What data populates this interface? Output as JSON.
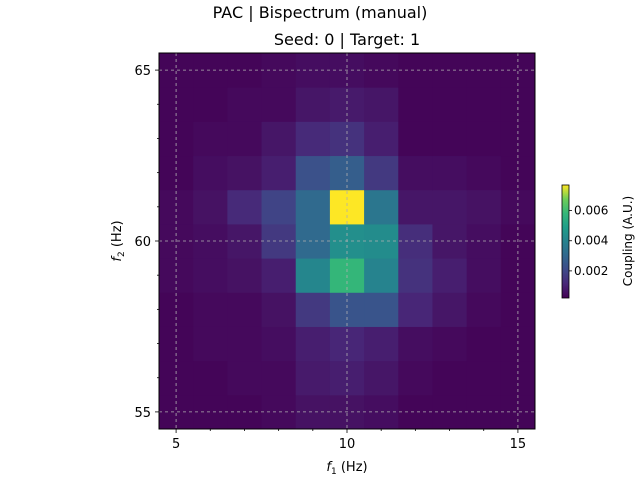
{
  "chart_data": {
    "type": "heatmap",
    "suptitle": "PAC | Bispectrum (manual)",
    "title": "Seed: 0 | Target: 1",
    "xlabel_main": "f",
    "xlabel_sub": "1",
    "xlabel_unit": " (Hz)",
    "ylabel_main": "f",
    "ylabel_sub": "2",
    "ylabel_unit": " (Hz)",
    "x": [
      5,
      6,
      7,
      8,
      9,
      10,
      11,
      12,
      13,
      14,
      15
    ],
    "y": [
      55,
      56,
      57,
      58,
      59,
      60,
      61,
      62,
      63,
      64,
      65
    ],
    "xlim": [
      4.5,
      15.5
    ],
    "ylim": [
      54.5,
      65.5
    ],
    "xticks": [
      5,
      10,
      15
    ],
    "xtick_labels": [
      "5",
      "10",
      "15"
    ],
    "yticks": [
      55,
      60,
      65
    ],
    "ytick_labels": [
      "55",
      "60",
      "65"
    ],
    "grid": true,
    "colormap": "viridis",
    "vmin": 0.0002,
    "vmax": 0.0077,
    "colorbar_label": "Coupling (A.U.)",
    "colorbar_ticks": [
      0.002,
      0.004,
      0.006
    ],
    "colorbar_tick_labels": [
      "0.002",
      "0.004",
      "0.006"
    ],
    "values": [
      [
        0.0003,
        0.0003,
        0.0003,
        0.0004,
        0.0006,
        0.0006,
        0.0005,
        0.0003,
        0.0003,
        0.0003,
        0.0003
      ],
      [
        0.0003,
        0.0003,
        0.0004,
        0.0004,
        0.0008,
        0.0009,
        0.0007,
        0.0004,
        0.0003,
        0.0003,
        0.0003
      ],
      [
        0.0003,
        0.0004,
        0.0004,
        0.0005,
        0.0009,
        0.0011,
        0.0009,
        0.0005,
        0.0004,
        0.0003,
        0.0003
      ],
      [
        0.0003,
        0.0004,
        0.0004,
        0.0006,
        0.0016,
        0.0024,
        0.0024,
        0.0011,
        0.0007,
        0.0004,
        0.0003
      ],
      [
        0.0004,
        0.0005,
        0.0006,
        0.0009,
        0.0041,
        0.0058,
        0.004,
        0.0014,
        0.0009,
        0.0005,
        0.0003
      ],
      [
        0.0004,
        0.0005,
        0.0007,
        0.0016,
        0.0031,
        0.0044,
        0.0043,
        0.0013,
        0.0007,
        0.0005,
        0.0003
      ],
      [
        0.0004,
        0.0006,
        0.0012,
        0.0019,
        0.0031,
        0.0077,
        0.0035,
        0.0007,
        0.0007,
        0.0006,
        0.0004
      ],
      [
        0.0003,
        0.0005,
        0.0006,
        0.0009,
        0.0023,
        0.0027,
        0.0016,
        0.0005,
        0.0005,
        0.0004,
        0.0003
      ],
      [
        0.0003,
        0.0004,
        0.0004,
        0.0007,
        0.0012,
        0.0014,
        0.0009,
        0.0003,
        0.0003,
        0.0003,
        0.0003
      ],
      [
        0.0003,
        0.0003,
        0.0004,
        0.0004,
        0.0007,
        0.0008,
        0.0007,
        0.0003,
        0.0003,
        0.0003,
        0.0003
      ],
      [
        0.0003,
        0.0003,
        0.0003,
        0.0004,
        0.0005,
        0.0005,
        0.0004,
        0.0003,
        0.0003,
        0.0003,
        0.0003
      ]
    ]
  }
}
